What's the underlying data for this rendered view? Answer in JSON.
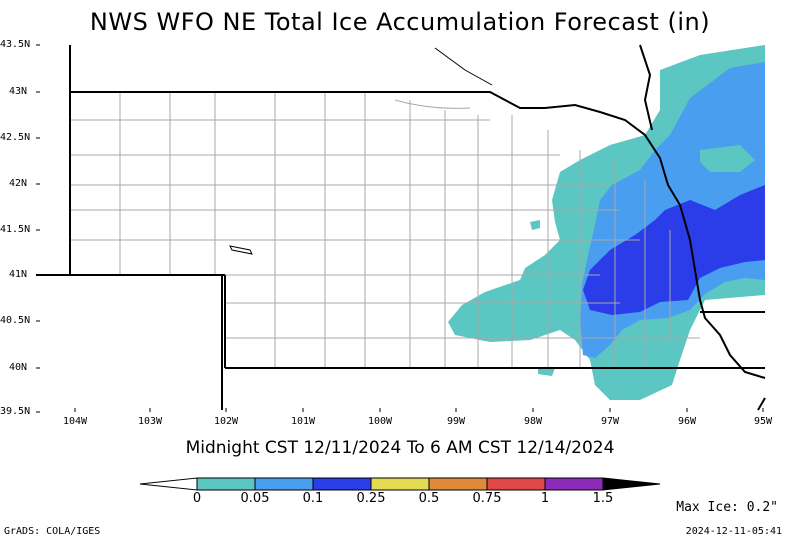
{
  "title": "NWS WFO NE Total Ice Accumulation Forecast (in)",
  "subtitle": "Midnight CST 12/11/2024 To 6 AM CST 12/14/2024",
  "lat_labels": [
    "43.5N",
    "43N",
    "42.5N",
    "42N",
    "41.5N",
    "41N",
    "40.5N",
    "40N",
    "39.5N"
  ],
  "lon_labels": [
    "104W",
    "103W",
    "102W",
    "101W",
    "100W",
    "99W",
    "98W",
    "97W",
    "96W",
    "95W"
  ],
  "color_scale": {
    "labels": [
      "0",
      "0.05",
      "0.1",
      "0.25",
      "0.5",
      "0.75",
      "1",
      "1.5"
    ],
    "colors": [
      "#5cc6c2",
      "#4a9ef0",
      "#2b3de8",
      "#e3db52",
      "#e0893a",
      "#e04848",
      "#8b2bb8"
    ]
  },
  "max_ice": "Max Ice: 0.2\"",
  "footer_left": "GrADS: COLA/IGES",
  "footer_right": "2024-12-11-05:41"
}
